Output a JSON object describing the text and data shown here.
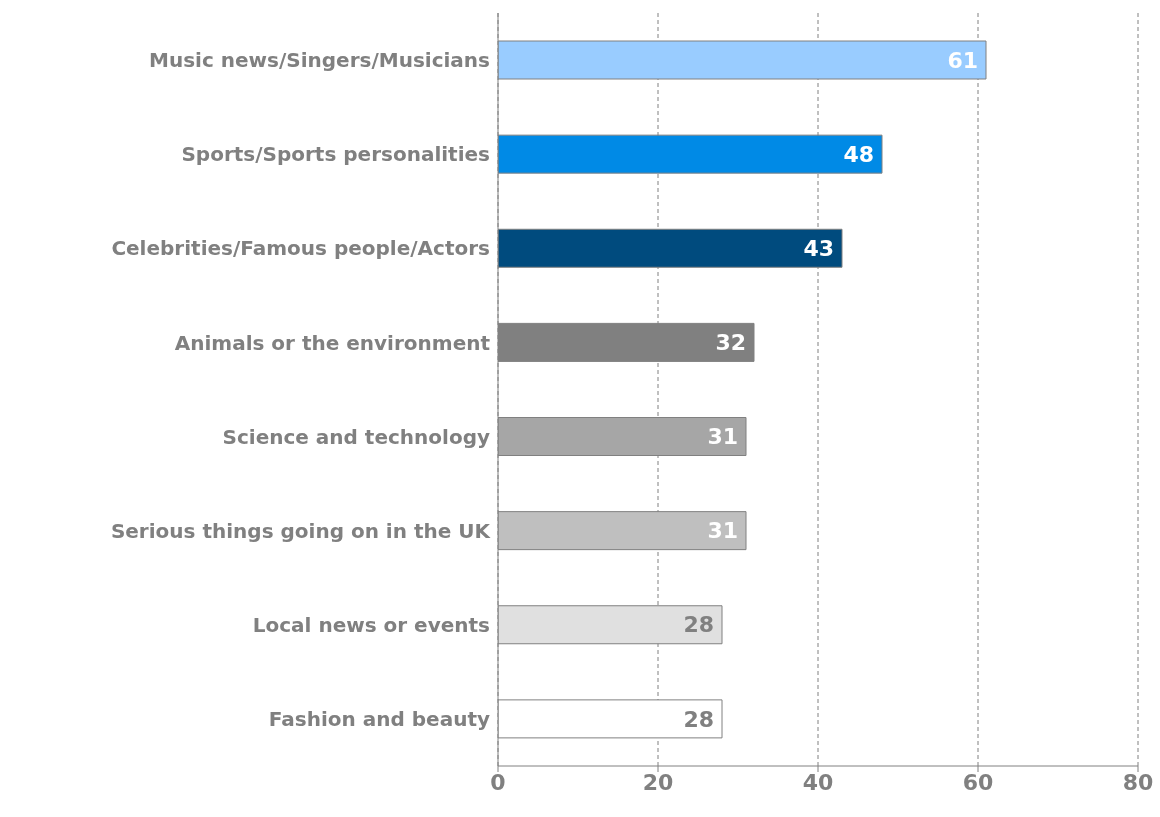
{
  "chart_data": {
    "type": "bar",
    "orientation": "horizontal",
    "categories": [
      "Music news/Singers/Musicians",
      "Sports/Sports personalities",
      "Celebrities/Famous people/Actors",
      "Animals or the environment",
      "Science and technology",
      "Serious things going on in the UK",
      "Local news or events",
      "Fashion and beauty"
    ],
    "values": [
      61,
      48,
      43,
      32,
      31,
      31,
      28,
      28
    ],
    "colors": [
      "#99ccff",
      "#008ae6",
      "#004b7e",
      "#808080",
      "#a6a6a6",
      "#bfbfbf",
      "#e0e0e0",
      "#ffffff"
    ],
    "xlim": [
      0,
      80
    ],
    "xticks": [
      0,
      20,
      40,
      60,
      80
    ],
    "grid": "x",
    "data_labels": true
  }
}
